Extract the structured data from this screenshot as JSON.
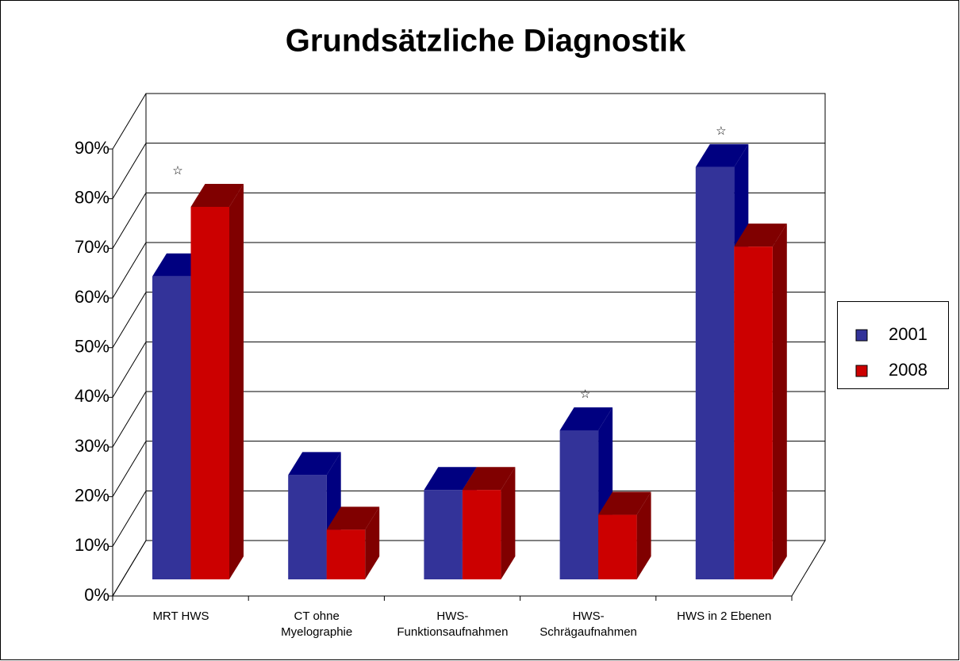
{
  "chart_data": {
    "type": "bar3d",
    "title": "Grundsätzliche Diagnostik",
    "categories": [
      "MRT HWS",
      "CT ohne\nMyelographie",
      "HWS-\nFunktionsaufnahmen",
      "HWS-\nSchrägaufnahmen",
      "HWS in 2 Ebenen"
    ],
    "series": [
      {
        "name": "2001",
        "color": "#333399",
        "shade": "#000080",
        "values": [
          61,
          21,
          18,
          30,
          83
        ]
      },
      {
        "name": "2008",
        "color": "#cc0000",
        "shade": "#800000",
        "values": [
          75,
          10,
          18,
          13,
          67
        ]
      }
    ],
    "ylim": [
      0,
      90
    ],
    "yticks": [
      {
        "value": 0,
        "label": "0%"
      },
      {
        "value": 10,
        "label": "10%"
      },
      {
        "value": 20,
        "label": "20%"
      },
      {
        "value": 30,
        "label": "30%"
      },
      {
        "value": 40,
        "label": "40%"
      },
      {
        "value": 50,
        "label": "50%"
      },
      {
        "value": 60,
        "label": "60%"
      },
      {
        "value": 70,
        "label": "70%"
      },
      {
        "value": 80,
        "label": "80%"
      },
      {
        "value": 90,
        "label": "90%"
      }
    ],
    "annotations": [
      {
        "text": "☆",
        "category": "MRT HWS"
      },
      {
        "text": "☆",
        "category": "HWS-\nSchrägaufnahmen"
      },
      {
        "text": "☆",
        "category": "HWS in 2 Ebenen"
      }
    ],
    "grid": true,
    "legend": "right"
  }
}
